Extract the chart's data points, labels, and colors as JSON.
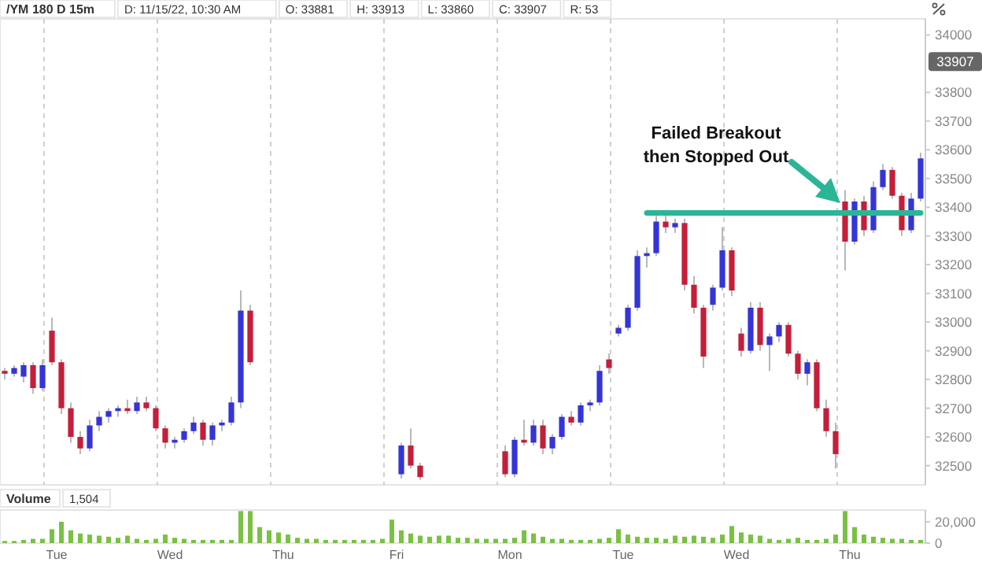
{
  "chart_data": [
    {
      "type": "candlestick",
      "title": "/YM 180 D 15m",
      "annotations": [
        "D: 11/15/22, 10:30 AM",
        "O: 33881",
        "H: 33913",
        "L: 33860",
        "C: 33907",
        "R: 53",
        {
          "text": "33907",
          "y": 33907
        },
        "Failed Breakout\nthen Stopped Out"
      ],
      "categories": [
        null,
        null,
        null,
        null,
        null,
        null,
        null,
        null,
        null,
        null,
        null,
        null,
        null,
        null,
        null,
        null,
        null,
        null,
        null,
        null,
        null,
        null,
        null,
        null,
        null,
        null,
        null,
        null,
        null,
        null,
        null,
        null,
        null,
        null,
        null,
        null,
        null,
        null,
        null,
        null,
        null,
        null,
        null,
        null,
        null,
        null,
        null,
        null,
        null,
        null,
        null,
        null,
        null,
        null,
        null,
        null,
        null,
        null,
        null,
        null,
        null,
        null,
        null,
        null,
        null,
        null,
        null,
        null,
        null,
        null,
        null,
        null,
        null,
        null,
        null,
        null,
        null,
        null,
        null,
        null,
        null,
        null,
        null,
        null,
        null,
        null,
        null,
        null,
        null,
        null,
        null,
        null,
        null,
        null,
        null,
        null,
        null,
        null
      ],
      "ohlc": [
        [
          32830,
          32840,
          32800,
          32820
        ],
        [
          32820,
          32850,
          32810,
          32840
        ],
        [
          32810,
          32860,
          32790,
          32850
        ],
        [
          32850,
          32860,
          32750,
          32770
        ],
        [
          32770,
          32870,
          32760,
          32850
        ],
        [
          32970,
          33015,
          32850,
          32860
        ],
        [
          32860,
          32870,
          32680,
          32700
        ],
        [
          32700,
          32720,
          32580,
          32600
        ],
        [
          32600,
          32620,
          32540,
          32560
        ],
        [
          32560,
          32660,
          32550,
          32640
        ],
        [
          32640,
          32690,
          32620,
          32670
        ],
        [
          32670,
          32700,
          32650,
          32690
        ],
        [
          32690,
          32710,
          32670,
          32700
        ],
        [
          32700,
          32730,
          32680,
          32690
        ],
        [
          32690,
          32740,
          32680,
          32720
        ],
        [
          32720,
          32740,
          32690,
          32700
        ],
        [
          32700,
          32710,
          32620,
          32630
        ],
        [
          32630,
          32640,
          32560,
          32580
        ],
        [
          32580,
          32600,
          32560,
          32590
        ],
        [
          32590,
          32630,
          32580,
          32620
        ],
        [
          32620,
          32670,
          32610,
          32650
        ],
        [
          32650,
          32660,
          32570,
          32590
        ],
        [
          32590,
          32650,
          32570,
          32640
        ],
        [
          32640,
          32660,
          32620,
          32650
        ],
        [
          32650,
          32740,
          32640,
          32720
        ],
        [
          32720,
          33110,
          32700,
          33040
        ],
        [
          33040,
          33060,
          32850,
          32860
        ],
        null,
        null,
        null,
        null,
        null,
        null,
        null,
        null,
        null,
        null,
        null,
        null,
        null,
        null,
        null,
        [
          32470,
          32580,
          32455,
          32570
        ],
        [
          32570,
          32630,
          32490,
          32500
        ],
        [
          32500,
          32510,
          32450,
          32460
        ],
        null,
        null,
        null,
        null,
        null,
        null,
        null,
        null,
        [
          32550,
          32570,
          32460,
          32470
        ],
        [
          32470,
          32600,
          32460,
          32590
        ],
        [
          32590,
          32660,
          32570,
          32580
        ],
        [
          32580,
          32660,
          32570,
          32640
        ],
        [
          32640,
          32660,
          32540,
          32560
        ],
        [
          32560,
          32610,
          32540,
          32600
        ],
        [
          32600,
          32680,
          32590,
          32670
        ],
        [
          32670,
          32690,
          32640,
          32650
        ],
        [
          32650,
          32720,
          32640,
          32710
        ],
        [
          32710,
          32730,
          32690,
          32720
        ],
        [
          32720,
          32850,
          32710,
          32830
        ],
        [
          32870,
          32890,
          32820,
          32840
        ],
        [
          32960,
          32990,
          32950,
          32980
        ],
        [
          32980,
          33060,
          32970,
          33050
        ],
        [
          33050,
          33250,
          33040,
          33230
        ],
        [
          33230,
          33260,
          33190,
          33240
        ],
        [
          33240,
          33370,
          33230,
          33350
        ],
        [
          33350,
          33380,
          33310,
          33330
        ],
        [
          33330,
          33360,
          33310,
          33345
        ],
        [
          33345,
          33360,
          33110,
          33130
        ],
        [
          33130,
          33160,
          33030,
          33050
        ],
        [
          33050,
          33060,
          32840,
          32880
        ],
        [
          33060,
          33130,
          33040,
          33120
        ],
        [
          33120,
          33330,
          33110,
          33250
        ],
        [
          33250,
          33260,
          33090,
          33110
        ],
        [
          32960,
          32980,
          32880,
          32900
        ],
        [
          32900,
          33070,
          32890,
          33050
        ],
        [
          33050,
          33070,
          32900,
          32920
        ],
        [
          32920,
          32960,
          32830,
          32950
        ],
        [
          32950,
          33000,
          32930,
          32990
        ],
        [
          32990,
          33000,
          32880,
          32890
        ],
        [
          32890,
          32900,
          32800,
          32820
        ],
        [
          32820,
          32870,
          32780,
          32860
        ],
        [
          32860,
          32870,
          32690,
          32700
        ],
        [
          32700,
          32730,
          32600,
          32620
        ],
        [
          32620,
          32650,
          32490,
          32540
        ],
        [
          33420,
          33460,
          33180,
          33280
        ],
        [
          33280,
          33430,
          33270,
          33420
        ],
        [
          33420,
          33440,
          33300,
          33320
        ],
        [
          33320,
          33490,
          33310,
          33470
        ],
        [
          33470,
          33550,
          33460,
          33530
        ],
        [
          33530,
          33540,
          33430,
          33440
        ],
        [
          33440,
          33450,
          33300,
          33320
        ],
        [
          33320,
          33450,
          33310,
          33430
        ],
        [
          33430,
          33590,
          33420,
          33570
        ]
      ],
      "series": [
        {
          "type": "line",
          "color": "#2bb597",
          "values": [
            null,
            null,
            null,
            null,
            null,
            null,
            null,
            null,
            null,
            null,
            null,
            null,
            null,
            null,
            null,
            null,
            null,
            null,
            null,
            null,
            null,
            null,
            null,
            null,
            null,
            null,
            null,
            null,
            null,
            null,
            null,
            null,
            null,
            null,
            null,
            null,
            null,
            null,
            null,
            null,
            null,
            null,
            null,
            null,
            null,
            null,
            null,
            null,
            null,
            null,
            null,
            null,
            null,
            null,
            null,
            null,
            null,
            null,
            null,
            null,
            null,
            null,
            null,
            null,
            null,
            null,
            null,
            null,
            33380,
            33380,
            33380,
            33380,
            33380,
            33380,
            33380,
            33380,
            33380,
            33380,
            33380,
            33380,
            33380,
            33380,
            33380,
            33380,
            33380,
            33380,
            33380,
            33380,
            33380,
            33380,
            33380,
            33380,
            33380,
            33380,
            33380,
            33380,
            33380,
            33380
          ]
        }
      ],
      "ylim": [
        32433,
        34056
      ],
      "yticks": [
        32500,
        32600,
        32700,
        32800,
        32900,
        33000,
        33100,
        33200,
        33300,
        33400,
        33500,
        33600,
        33700,
        33800,
        34000
      ],
      "grid": "x",
      "tick_labels": "y"
    },
    {
      "type": "bar",
      "title": "Volume",
      "annotations": [
        "1,504"
      ],
      "color": "#7ac143",
      "categories": [
        null,
        null,
        null,
        null,
        null,
        "Tue",
        null,
        null,
        null,
        null,
        null,
        null,
        null,
        null,
        null,
        null,
        null,
        "Wed",
        null,
        null,
        null,
        null,
        null,
        null,
        null,
        null,
        null,
        null,
        null,
        "Thu",
        null,
        null,
        null,
        null,
        null,
        null,
        null,
        null,
        null,
        null,
        null,
        "Fri",
        null,
        null,
        null,
        null,
        null,
        null,
        null,
        null,
        null,
        null,
        null,
        "Mon",
        null,
        null,
        null,
        null,
        null,
        null,
        null,
        null,
        null,
        null,
        null,
        "Tue",
        null,
        null,
        null,
        null,
        null,
        null,
        null,
        null,
        null,
        null,
        null,
        "Wed",
        null,
        null,
        null,
        null,
        null,
        null,
        null,
        null,
        null,
        null,
        null,
        "Thu",
        null,
        null,
        null,
        null,
        null,
        null,
        null,
        null
      ],
      "values": [
        2000,
        2000,
        3000,
        4000,
        4000,
        13000,
        20000,
        12000,
        9000,
        8000,
        7000,
        6000,
        5000,
        7000,
        4000,
        3000,
        4000,
        8000,
        5000,
        4000,
        3000,
        3000,
        3000,
        3000,
        3000,
        30000,
        30000,
        15000,
        12000,
        10000,
        8000,
        5000,
        4000,
        4000,
        3000,
        3000,
        3000,
        3000,
        3000,
        3000,
        4000,
        22000,
        12000,
        9000,
        7000,
        6000,
        7000,
        7000,
        5000,
        5000,
        4000,
        4000,
        4000,
        4000,
        5000,
        12000,
        9000,
        6000,
        4000,
        4000,
        3000,
        3000,
        3000,
        4000,
        5000,
        13000,
        8000,
        6000,
        5000,
        5000,
        4000,
        7000,
        6000,
        7000,
        6000,
        5000,
        8000,
        16000,
        10000,
        8000,
        7000,
        4000,
        3000,
        4000,
        5000,
        3000,
        3000,
        4000,
        8000,
        30000,
        15000,
        8000,
        6000,
        5000,
        4000,
        4000,
        3000,
        3000
      ],
      "ylim": [
        0,
        31000
      ],
      "yticks": [
        0,
        {
          "value": 20000,
          "label": "20,000"
        }
      ]
    }
  ]
}
